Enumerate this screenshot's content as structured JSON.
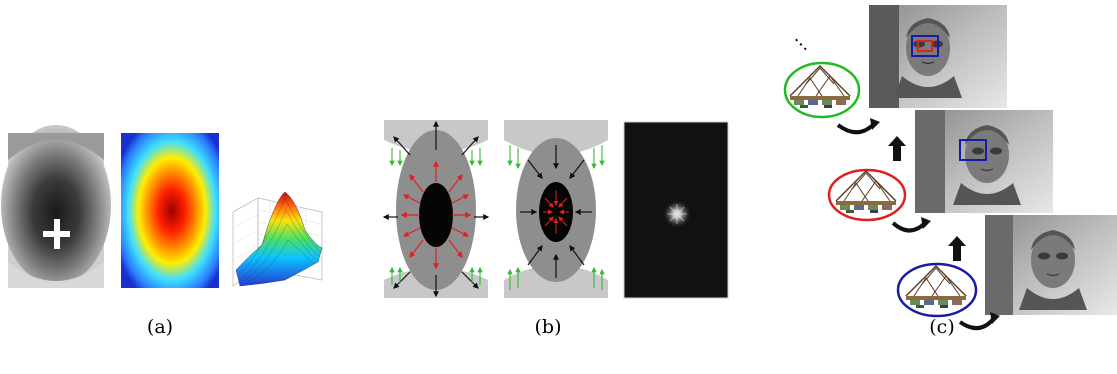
{
  "figure": {
    "captions": {
      "a": "(a)",
      "b": "(b)",
      "c": "(c)"
    },
    "ellipsis": "⋮",
    "colors": {
      "heat_low": "#1f2fd0",
      "heat_mid": "#ffd000",
      "heat_high": "#c00000",
      "circle_green": "#22bb22",
      "circle_red": "#dd2020",
      "circle_blue": "#1a1aa8",
      "arrow_red": "#e02020",
      "arrow_green": "#33bb33"
    },
    "icons": [
      "crosshair-icon",
      "arrow-up-icon",
      "curved-arrow-icon",
      "tree-icon"
    ]
  }
}
